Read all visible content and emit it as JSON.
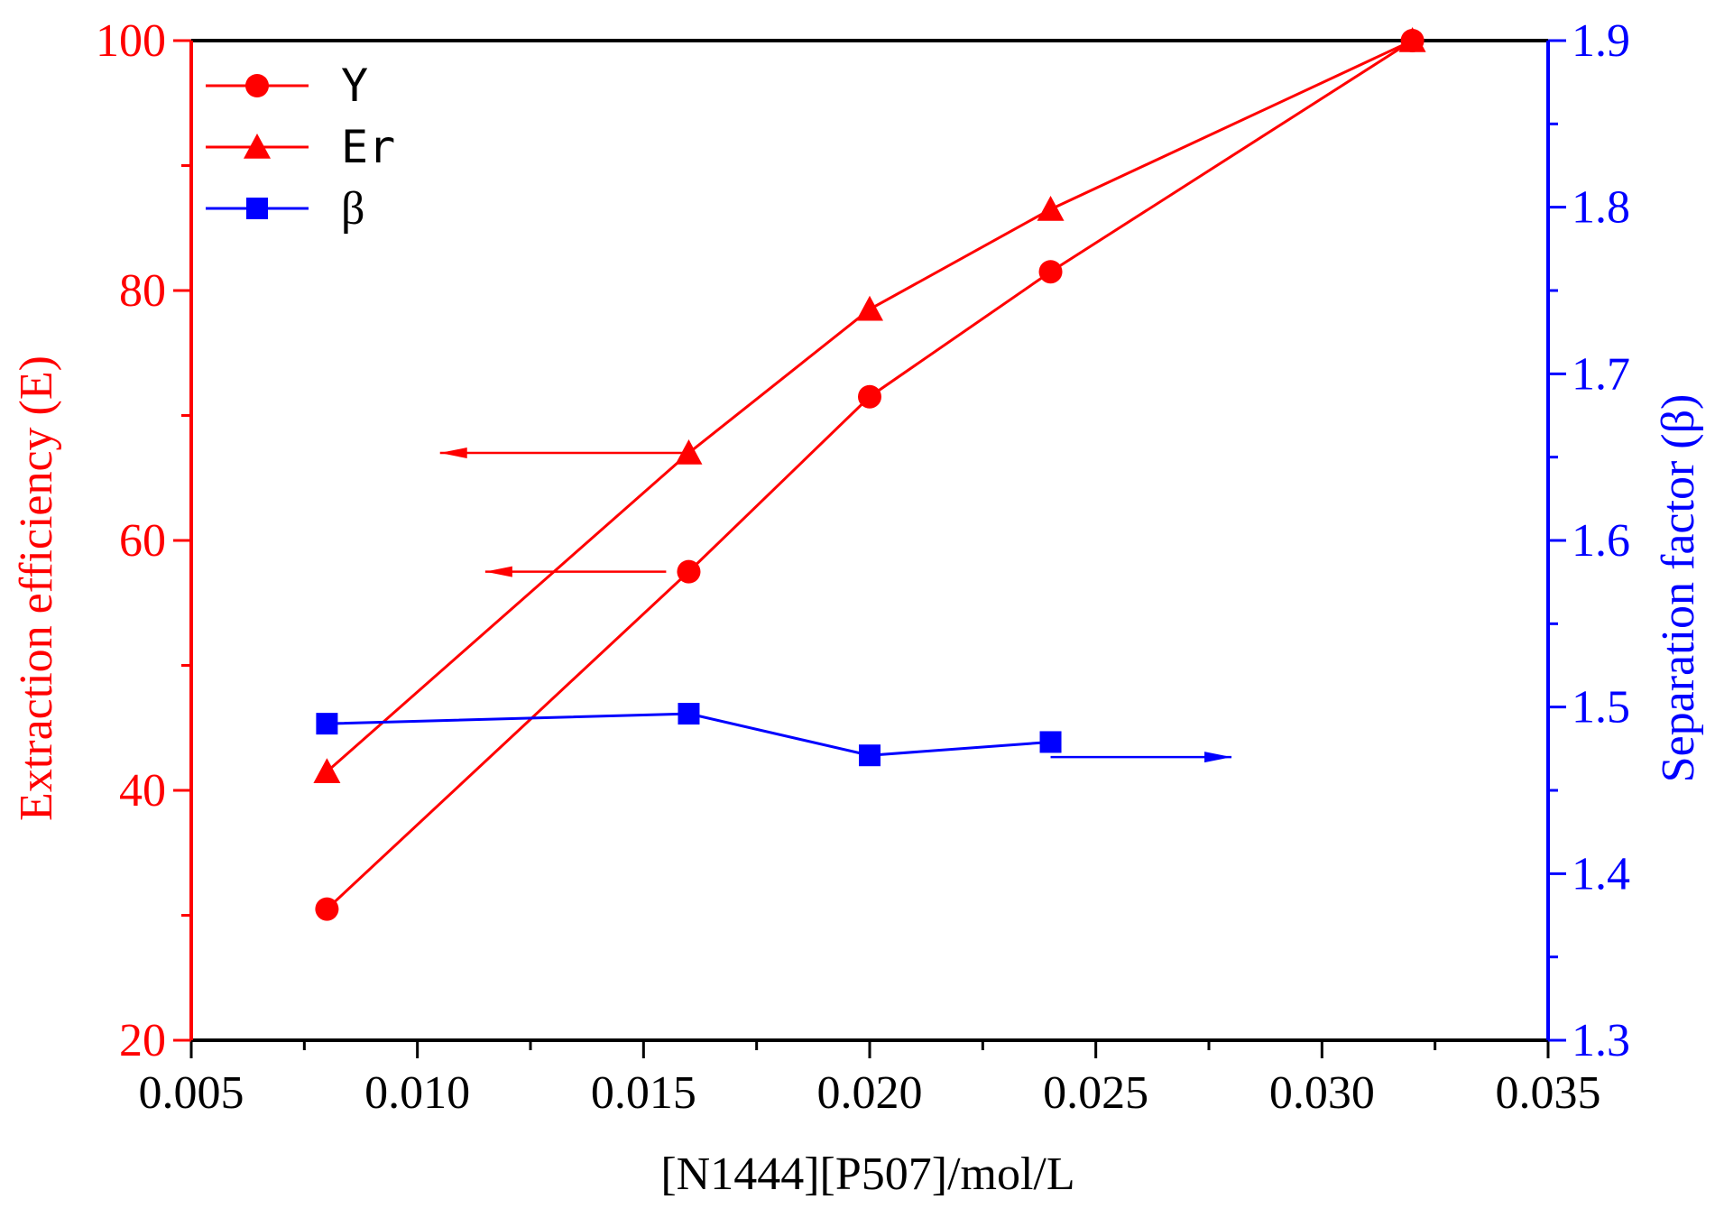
{
  "chart_data": {
    "type": "line",
    "x": [
      0.008,
      0.016,
      0.02,
      0.024,
      0.032
    ],
    "xlabel": "[N1444][P507]/mol/L",
    "ylabel_left": "Extraction efficiency (E)",
    "ylabel_right": "Separation factor (β)",
    "xlim": [
      0.005,
      0.035
    ],
    "ylim_left": [
      20,
      100
    ],
    "ylim_right": [
      1.3,
      1.9
    ],
    "x_ticks": [
      0.005,
      0.01,
      0.015,
      0.02,
      0.025,
      0.03,
      0.035
    ],
    "x_tick_labels": [
      "0.005",
      "0.010",
      "0.015",
      "0.020",
      "0.025",
      "0.030",
      "0.035"
    ],
    "y_left_ticks": [
      20,
      40,
      60,
      80,
      100
    ],
    "y_left_tick_labels": [
      "20",
      "40",
      "60",
      "80",
      "100"
    ],
    "y_right_ticks": [
      1.3,
      1.4,
      1.5,
      1.6,
      1.7,
      1.8,
      1.9
    ],
    "y_right_tick_labels": [
      "1.3",
      "1.4",
      "1.5",
      "1.6",
      "1.7",
      "1.8",
      "1.9"
    ],
    "series": [
      {
        "name": "Y",
        "axis": "left",
        "marker": "circle",
        "color": "#ff0000",
        "x": [
          0.008,
          0.016,
          0.02,
          0.024,
          0.032
        ],
        "values": [
          30.5,
          57.5,
          71.5,
          81.5,
          100
        ]
      },
      {
        "name": "Er",
        "axis": "left",
        "marker": "triangle",
        "color": "#ff0000",
        "x": [
          0.008,
          0.016,
          0.02,
          0.024,
          0.032
        ],
        "values": [
          41.5,
          67.0,
          78.5,
          86.5,
          100
        ]
      },
      {
        "name": "β",
        "axis": "right",
        "marker": "square",
        "color": "#0000ff",
        "x": [
          0.008,
          0.016,
          0.02,
          0.024
        ],
        "values": [
          1.49,
          1.496,
          1.471,
          1.479
        ]
      }
    ],
    "annotations": [
      {
        "type": "arrow",
        "direction": "left",
        "axis": "left",
        "x_from": 0.016,
        "x_to": 0.0105,
        "y": 67.0,
        "color": "#ff0000"
      },
      {
        "type": "arrow",
        "direction": "left",
        "axis": "left",
        "x_from": 0.0155,
        "x_to": 0.0115,
        "y": 57.5,
        "color": "#ff0000"
      },
      {
        "type": "arrow",
        "direction": "right",
        "axis": "right",
        "x_from": 0.024,
        "x_to": 0.028,
        "y": 1.47,
        "color": "#0000ff"
      }
    ],
    "legend": {
      "position": "top-left",
      "entries": [
        "Y",
        "Er",
        "β"
      ]
    },
    "colors": {
      "left_axis": "#ff0000",
      "right_axis": "#0000ff",
      "x_axis": "#000000"
    }
  }
}
